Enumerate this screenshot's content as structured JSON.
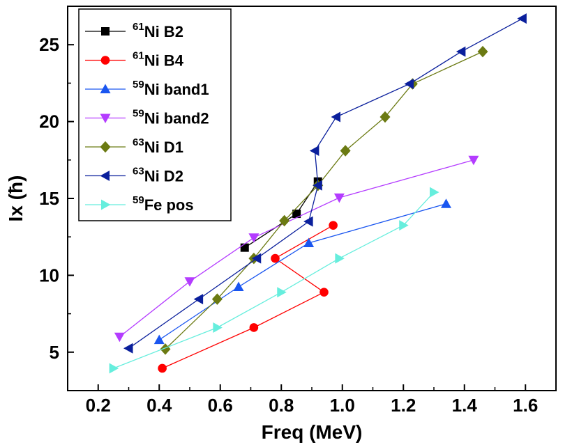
{
  "chart_data": {
    "type": "line",
    "title": "",
    "xlabel": "Freq (MeV)",
    "ylabel_main": "Ix (",
    "ylabel_hbar": "ħ",
    "ylabel_close": ")",
    "xlim": [
      0.1,
      1.7
    ],
    "ylim": [
      2.5,
      27.5
    ],
    "xticks": [
      0.2,
      0.4,
      0.6,
      0.8,
      1.0,
      1.2,
      1.4,
      1.6
    ],
    "xtick_labels": [
      "0.2",
      "0.4",
      "0.6",
      "0.8",
      "1.0",
      "1.2",
      "1.4",
      "1.6"
    ],
    "yticks": [
      5,
      10,
      15,
      20,
      25
    ],
    "ytick_labels": [
      "5",
      "10",
      "15",
      "20",
      "25"
    ],
    "grid": false,
    "legend_position": "top-left",
    "series": [
      {
        "sup": "61",
        "name": "Ni B2",
        "color": "#000000",
        "marker": "square",
        "x": [
          0.68,
          0.85,
          0.92
        ],
        "y": [
          11.8,
          14.0,
          16.1
        ]
      },
      {
        "sup": "61",
        "name": "Ni B4",
        "color": "#ff0000",
        "marker": "circle",
        "x": [
          0.41,
          0.71,
          0.94,
          0.78,
          0.97
        ],
        "y": [
          3.95,
          6.6,
          8.9,
          11.1,
          13.25
        ]
      },
      {
        "sup": "59",
        "name": "Ni band1",
        "color": "#1a56f0",
        "marker": "triangle-up",
        "x": [
          0.4,
          0.66,
          0.89,
          1.34
        ],
        "y": [
          5.8,
          9.25,
          12.1,
          14.65
        ]
      },
      {
        "sup": "59",
        "name": "Ni band2",
        "color": "#b43cff",
        "marker": "triangle-down",
        "x": [
          0.27,
          0.5,
          0.71,
          0.99,
          1.43
        ],
        "y": [
          6.0,
          9.6,
          12.45,
          15.05,
          17.5
        ]
      },
      {
        "sup": "63",
        "name": "Ni D1",
        "color": "#6b7a12",
        "marker": "diamond",
        "x": [
          0.42,
          0.59,
          0.71,
          0.81,
          0.92,
          1.01,
          1.14,
          1.23,
          1.46
        ],
        "y": [
          5.2,
          8.45,
          11.1,
          13.55,
          15.85,
          18.1,
          20.3,
          22.45,
          24.55
        ]
      },
      {
        "sup": "63",
        "name": "Ni D2",
        "color": "#0a1f9c",
        "marker": "triangle-left",
        "x": [
          0.3,
          0.53,
          0.72,
          0.89,
          0.92,
          0.91,
          0.98,
          1.22,
          1.39,
          1.59
        ],
        "y": [
          5.25,
          8.45,
          11.1,
          13.5,
          15.85,
          18.1,
          20.3,
          22.45,
          24.55,
          26.7
        ]
      },
      {
        "sup": "59",
        "name": "Fe pos",
        "color": "#66eedd",
        "marker": "triangle-right",
        "x": [
          0.25,
          0.59,
          0.8,
          0.99,
          1.2,
          1.3
        ],
        "y": [
          3.95,
          6.6,
          8.9,
          11.1,
          13.25,
          15.4
        ]
      }
    ]
  }
}
